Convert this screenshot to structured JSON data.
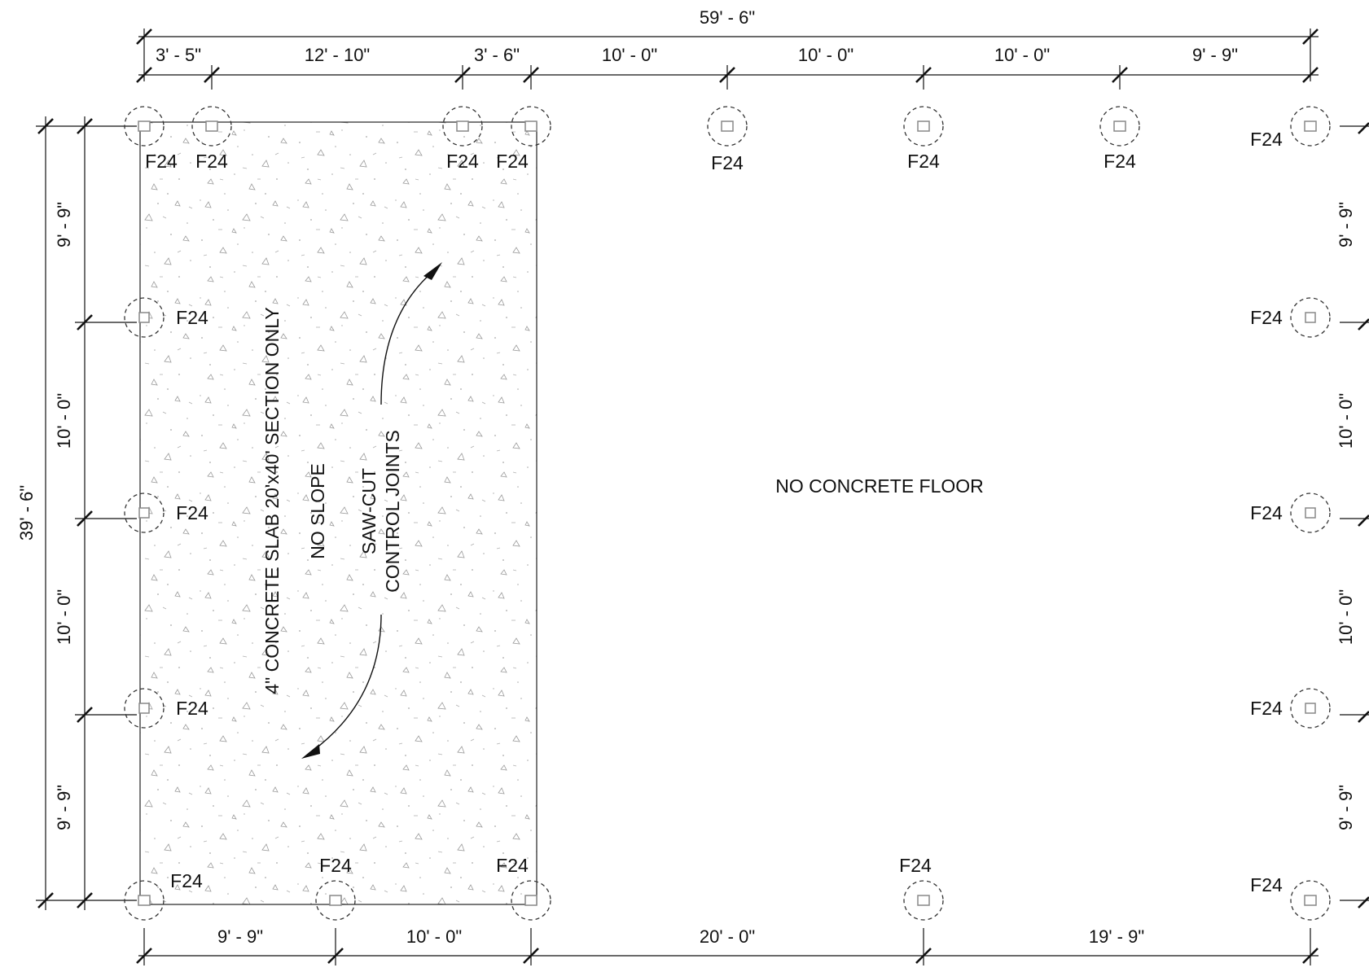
{
  "dimensions": {
    "overall_top": "59' - 6\"",
    "top": [
      "3' - 5\"",
      "12' - 10\"",
      "3' - 6\"",
      "10' - 0\"",
      "10' - 0\"",
      "10' - 0\"",
      "9' - 9\""
    ],
    "bottom": [
      "9' - 9\"",
      "10' - 0\"",
      "20' - 0\"",
      "19' - 9\""
    ],
    "overall_left": "39' - 6\"",
    "left": [
      "9' - 9\"",
      "10' - 0\"",
      "10' - 0\"",
      "9' - 9\""
    ],
    "right": [
      "9' - 9\"",
      "10' - 0\"",
      "10' - 0\"",
      "9' - 9\""
    ]
  },
  "footing_tag": "F24",
  "notes": {
    "slab": "4\" CONCRETE SLAB 20'x40' SECTION ONLY",
    "no_slope": "NO SLOPE",
    "control_joints": [
      "SAW-CUT",
      "CONTROL JOINTS"
    ],
    "no_floor": "NO CONCRETE FLOOR"
  }
}
